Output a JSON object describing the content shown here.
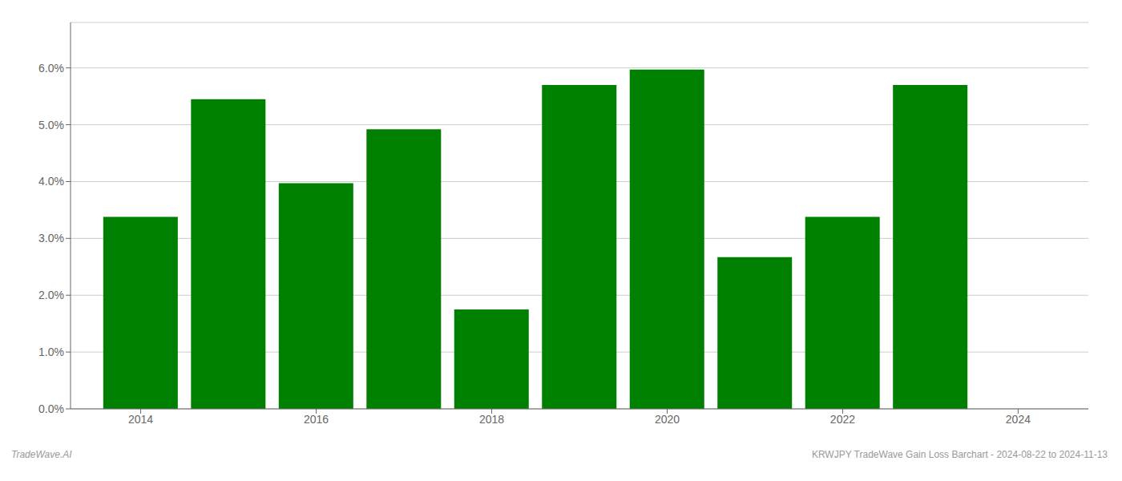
{
  "chart_data": {
    "type": "bar",
    "x": [
      2014,
      2015,
      2016,
      2017,
      2018,
      2019,
      2020,
      2021,
      2022,
      2023
    ],
    "values": [
      0.0338,
      0.0545,
      0.0397,
      0.0492,
      0.0175,
      0.057,
      0.0597,
      0.0267,
      0.0338,
      0.057
    ],
    "color": "#008000",
    "xlim": [
      2013.2,
      2024.8
    ],
    "xticks": [
      2014,
      2016,
      2018,
      2020,
      2022,
      2024
    ],
    "ylim": [
      0,
      0.068
    ],
    "yticks": [
      {
        "value": 0.0,
        "label": "0.0%"
      },
      {
        "value": 0.01,
        "label": "1.0%"
      },
      {
        "value": 0.02,
        "label": "2.0%"
      },
      {
        "value": 0.03,
        "label": "3.0%"
      },
      {
        "value": 0.04,
        "label": "4.0%"
      },
      {
        "value": 0.05,
        "label": "5.0%"
      },
      {
        "value": 0.06,
        "label": "6.0%"
      }
    ],
    "grid": true,
    "annotations": [
      "TradeWave.AI",
      "KRWJPY TradeWave Gain Loss Barchart - 2024-08-22 to 2024-11-13"
    ]
  }
}
